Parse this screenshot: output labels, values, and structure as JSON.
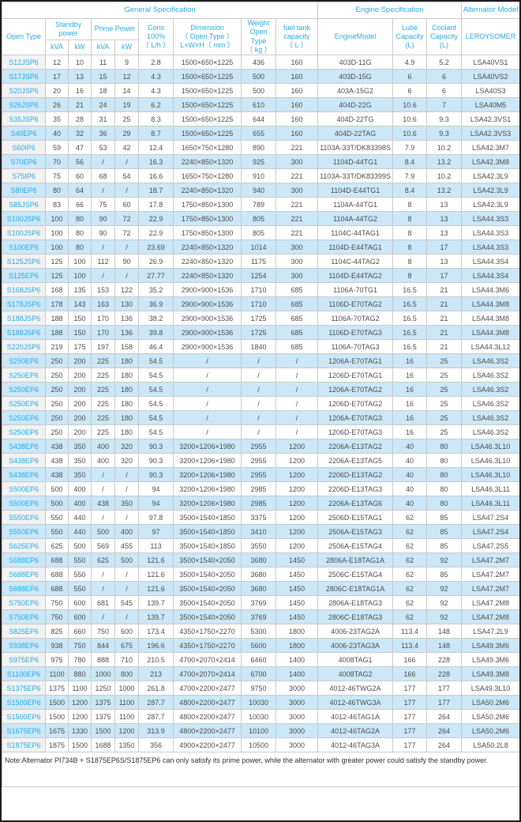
{
  "colors": {
    "accent_blue": "#29abe2",
    "alt_row_bg": "#cbe7f8",
    "first_col_bg": "#f2f2f2",
    "cell_border": "#c9c9c9",
    "outer_border": "#1b1b1b",
    "data_text": "#4d4d4d"
  },
  "header": {
    "groups": [
      {
        "label": "General Specification",
        "colspan": 9
      },
      {
        "label": "Engine Specification",
        "colspan": 3
      },
      {
        "label": "Alternator Model",
        "colspan": 1
      }
    ],
    "open_type": "Open Type",
    "standby_power": "Standby\npower",
    "prime_power": "Prime Power",
    "units": {
      "kva": "kVA",
      "kw": "kW"
    },
    "cons": "Cons\n100%\n（ L/h ）",
    "dimension": "Dimension\n（ Open Type ）\nL×W×H（ mm ）",
    "weight": "Weight\nOpen Type\n（ kg ）",
    "fuel_tank": "fuel tank\ncapacity\n（ L ）",
    "engine_model": "EngineModel",
    "lube": "Lube\nCapacity\n(L)",
    "coolant": "Coolant\nCapacity\n(L)",
    "alternator": "LEROYSOMER"
  },
  "rows": [
    [
      "S12JSP6",
      "12",
      "10",
      "11",
      "9",
      "2.8",
      "1500×650×1225",
      "436",
      "160",
      "403D-11G",
      "4.9",
      "5.2",
      "LSA40VS1"
    ],
    [
      "S17JSP6",
      "17",
      "13",
      "15",
      "12",
      "4.3",
      "1500×650×1225",
      "500",
      "160",
      "403D-15G",
      "6",
      "6",
      "LSA40VS2"
    ],
    [
      "S20JSP6",
      "20",
      "16",
      "18",
      "14",
      "4.3",
      "1500×650×1225",
      "500",
      "160",
      "403A-15G2",
      "6",
      "6",
      "LSA40S3"
    ],
    [
      "S26JSP6",
      "26",
      "21",
      "24",
      "19",
      "6.2",
      "1500×650×1225",
      "610",
      "160",
      "404D-22G",
      "10.6",
      "7",
      "LSA40M5"
    ],
    [
      "S35JSP6",
      "35",
      "28",
      "31",
      "25",
      "8.3",
      "1500×650×1225",
      "644",
      "160",
      "404D-22TG",
      "10.6",
      "9.3",
      "LSA42.3VS1"
    ],
    [
      "S40EP6",
      "40",
      "32",
      "36",
      "29",
      "8.7",
      "1500×650×1225",
      "655",
      "160",
      "404D-22TAG",
      "10.6",
      "9.3",
      "LSA42.3VS3"
    ],
    [
      "S60IP6",
      "59",
      "47",
      "53",
      "42",
      "12.4",
      "1650×750×1280",
      "890",
      "221",
      "1103A-33T/DK83398S",
      "7.9",
      "10.2",
      "LSA42.3M7"
    ],
    [
      "S70EP6",
      "70",
      "56",
      "/",
      "/",
      "16.3",
      "2240×850×1320",
      "925",
      "300",
      "1104D-44TG1",
      "8.4",
      "13.2",
      "LSA42.3M8"
    ],
    [
      "S75IP6",
      "75",
      "60",
      "68",
      "54",
      "16.6",
      "1650×750×1280",
      "910",
      "221",
      "1103A-33T/DK83399S",
      "7.9",
      "10.2",
      "LSA42.3L9"
    ],
    [
      "S80EP6",
      "80",
      "64",
      "/",
      "/",
      "18.7",
      "2240×850×1320",
      "940",
      "300",
      "1104D-E44TG1",
      "8.4",
      "13.2",
      "LSA42.3L9"
    ],
    [
      "S85JSP6",
      "83",
      "66",
      "75",
      "60",
      "17.8",
      "1750×850×1300",
      "789",
      "221",
      "1104A-44TG1",
      "8",
      "13",
      "LSA42.3L9"
    ],
    [
      "S100JSP6",
      "100",
      "80",
      "90",
      "72",
      "22.9",
      "1750×850×1300",
      "805",
      "221",
      "1104A-44TG2",
      "8",
      "13",
      "LSA44.3S3"
    ],
    [
      "S100JSP6",
      "100",
      "80",
      "90",
      "72",
      "22.9",
      "1750×850×1300",
      "805",
      "221",
      "1104C-44TAG1",
      "8",
      "13",
      "LSA44.3S3"
    ],
    [
      "S100EP6",
      "100",
      "80",
      "/",
      "/",
      "23.69",
      "2240×850×1320",
      "1014",
      "300",
      "1104D-E44TAG1",
      "8",
      "17",
      "LSA44.3S3"
    ],
    [
      "S125JSP6",
      "125",
      "100",
      "112",
      "90",
      "26.9",
      "2240×850×1320",
      "1175",
      "300",
      "1104C-44TAG2",
      "8",
      "13",
      "LSA44.3S4"
    ],
    [
      "S125EP6",
      "125",
      "100",
      "/",
      "/",
      "27.77",
      "2240×850×1320",
      "1254",
      "300",
      "1104D-E44TAG2",
      "8",
      "17",
      "LSA44.3S4"
    ],
    [
      "S168JSP6",
      "168",
      "135",
      "153",
      "122",
      "35.2",
      "2900×900×1536",
      "1710",
      "685",
      "1106A-70TG1",
      "16.5",
      "21",
      "LSA44.3M6"
    ],
    [
      "S178JSP6",
      "178",
      "143",
      "163",
      "130",
      "36.9",
      "2900×900×1536",
      "1710",
      "685",
      "1106D-E70TAG2",
      "16.5",
      "21",
      "LSA44.3M8"
    ],
    [
      "S188JSP6",
      "188",
      "150",
      "170",
      "136",
      "38.2",
      "2900×900×1536",
      "1725",
      "685",
      "1106A-70TAG2",
      "16.5",
      "21",
      "LSA44.3M8"
    ],
    [
      "S188JSP6",
      "188",
      "150",
      "170",
      "136",
      "39.8",
      "2900×900×1536",
      "1725",
      "685",
      "1106D-E70TAG3",
      "16.5",
      "21",
      "LSA44.3M8"
    ],
    [
      "S220JSP6",
      "219",
      "175",
      "197",
      "158",
      "46.4",
      "2900×900×1536",
      "1840",
      "685",
      "1106A-70TAG3",
      "16.5",
      "21",
      "LSA44.3L12"
    ],
    [
      "S250EP6",
      "250",
      "200",
      "225",
      "180",
      "54.5",
      "/",
      "/",
      "/",
      "1206A-E70TAG1",
      "16",
      "25",
      "LSA46.3S2"
    ],
    [
      "S250EP6",
      "250",
      "200",
      "225",
      "180",
      "54.5",
      "/",
      "/",
      "/",
      "1206D-E70TAG1",
      "16",
      "25",
      "LSA46.3S2"
    ],
    [
      "S250EP6",
      "250",
      "200",
      "225",
      "180",
      "54.5",
      "/",
      "/",
      "/",
      "1206A-E70TAG2",
      "16",
      "25",
      "LSA46.3S2"
    ],
    [
      "S250EP6",
      "250",
      "200",
      "225",
      "180",
      "54.5",
      "/",
      "/",
      "/",
      "1206D-E70TAG2",
      "16",
      "25",
      "LSA46.3S2"
    ],
    [
      "S250EP6",
      "250",
      "200",
      "225",
      "180",
      "54.5",
      "/",
      "/",
      "/",
      "1206A-E70TAG3",
      "16",
      "25",
      "LSA46.3S2"
    ],
    [
      "S250EP6",
      "250",
      "200",
      "225",
      "180",
      "54.5",
      "/",
      "/",
      "/",
      "1206D-E70TAG3",
      "16",
      "25",
      "LSA46.3S2"
    ],
    [
      "S438EP6",
      "438",
      "350",
      "400",
      "320",
      "90.3",
      "3200×1206×1980",
      "2955",
      "1200",
      "2206A-E13TAG2",
      "40",
      "80",
      "LSA46.3L10"
    ],
    [
      "S438EP6",
      "438",
      "350",
      "400",
      "320",
      "90.3",
      "3200×1206×1980",
      "2955",
      "1200",
      "2206A-E13TAG5",
      "40",
      "80",
      "LSA46.3L10"
    ],
    [
      "S438EP6",
      "438",
      "350",
      "/",
      "/",
      "90.3",
      "3200×1206×1980",
      "2955",
      "1200",
      "2206D-E13TAG2",
      "40",
      "80",
      "LSA46.3L10"
    ],
    [
      "S500EP6",
      "500",
      "400",
      "/",
      "/",
      "94",
      "3200×1206×1980",
      "2985",
      "1200",
      "2206D-E13TAG3",
      "40",
      "80",
      "LSA46.3L11"
    ],
    [
      "S500EP6",
      "500",
      "400",
      "438",
      "350",
      "94",
      "3200×1206×1980",
      "2985",
      "1200",
      "2206A-E13TAG6",
      "40",
      "80",
      "LSA46.3L11"
    ],
    [
      "S550EP6",
      "550",
      "440",
      "/",
      "/",
      "97.8",
      "3500×1540×1850",
      "3375",
      "1200",
      "2506D-E15TAG1",
      "62",
      "85",
      "LSA47.2S4"
    ],
    [
      "S550EP6",
      "550",
      "440",
      "500",
      "400",
      "97",
      "3500×1540×1850",
      "3410",
      "1200",
      "2506A-E15TAG3",
      "62",
      "85",
      "LSA47.2S4"
    ],
    [
      "S625EP6",
      "625",
      "500",
      "569",
      "455",
      "113",
      "3500×1540×1850",
      "3550",
      "1200",
      "2506A-E15TAG4",
      "62",
      "85",
      "LSA47.2S5"
    ],
    [
      "S688EP6",
      "688",
      "550",
      "625",
      "500",
      "121.6",
      "3500×1540×2050",
      "3680",
      "1450",
      "2806A-E18TAG1A",
      "62",
      "92",
      "LSA47.2M7"
    ],
    [
      "S688EP6",
      "688",
      "550",
      "/",
      "/",
      "121.6",
      "3500×1540×2050",
      "3680",
      "1450",
      "2506C-E15TAG4",
      "62",
      "85",
      "LSA47.2M7"
    ],
    [
      "S688EP6",
      "688",
      "550",
      "/",
      "/",
      "121.6",
      "3500×1540×2050",
      "3680",
      "1450",
      "2806C-E18TAG1A",
      "62",
      "92",
      "LSA47.2M7"
    ],
    [
      "S750EP6",
      "750",
      "600",
      "681",
      "545",
      "139.7",
      "3500×1540×2050",
      "3769",
      "1450",
      "2806A-E18TAG3",
      "62",
      "92",
      "LSA47.2M8"
    ],
    [
      "S750EP6",
      "750",
      "600",
      "/",
      "/",
      "139.7",
      "3500×1540×2050",
      "3769",
      "1450",
      "2806C-E18TAG3",
      "62",
      "92",
      "LSA47.2M8"
    ],
    [
      "S825EP6",
      "825",
      "660",
      "750",
      "600",
      "173.4",
      "4350×1750×2270",
      "5300",
      "1800",
      "4006-23TAG2A",
      "113.4",
      "148",
      "LSA47.2L9"
    ],
    [
      "S938EP6",
      "938",
      "750",
      "844",
      "675",
      "196.6",
      "4350×1750×2270",
      "5600",
      "1800",
      "4006-23TAG3A",
      "113.4",
      "148",
      "LSA49.3M6"
    ],
    [
      "S975EP6",
      "975",
      "780",
      "888",
      "710",
      "210.5",
      "4700×2070×2414",
      "6460",
      "1400",
      "4008TAG1",
      "166",
      "228",
      "LSA49.3M6"
    ],
    [
      "S1100EP6",
      "1100",
      "880",
      "1000",
      "800",
      "213",
      "4700×2070×2414",
      "6700",
      "1400",
      "4008TAG2",
      "166",
      "228",
      "LSA49.3M8"
    ],
    [
      "S1375EP6",
      "1375",
      "1100",
      "1250",
      "1000",
      "261.8",
      "4700×2200×2477",
      "9750",
      "3000",
      "4012-46TWG2A",
      "177",
      "177",
      "LSA49.3L10"
    ],
    [
      "S1500EP6",
      "1500",
      "1200",
      "1375",
      "1100",
      "287.7",
      "4800×2200×2477",
      "10030",
      "3000",
      "4012-46TWG3A",
      "177",
      "177",
      "LSA50.2M6"
    ],
    [
      "S1500EP6",
      "1500",
      "1200",
      "1375",
      "1100",
      "287.7",
      "4800×2200×2477",
      "10030",
      "3000",
      "4012-46TAG1A",
      "177",
      "264",
      "LSA50.2M6"
    ],
    [
      "S1675EP6",
      "1675",
      "1330",
      "1500",
      "1200",
      "313.9",
      "4800×2200×2477",
      "10100",
      "3000",
      "4012-46TAG2A",
      "177",
      "264",
      "LSA50.2M6"
    ],
    [
      "S1875EP6",
      "1875",
      "1500",
      "1688",
      "1350",
      "356",
      "4900×2200×2477",
      "10500",
      "3000",
      "4012-46TAG3A",
      "177",
      "264",
      "LSA50.2L8"
    ]
  ],
  "note": "Note:Alternator PI734B + S1875EP6S/S1875EP6 can only satisfy its prime power, while the alternator with greater power could satisfy the standby power."
}
